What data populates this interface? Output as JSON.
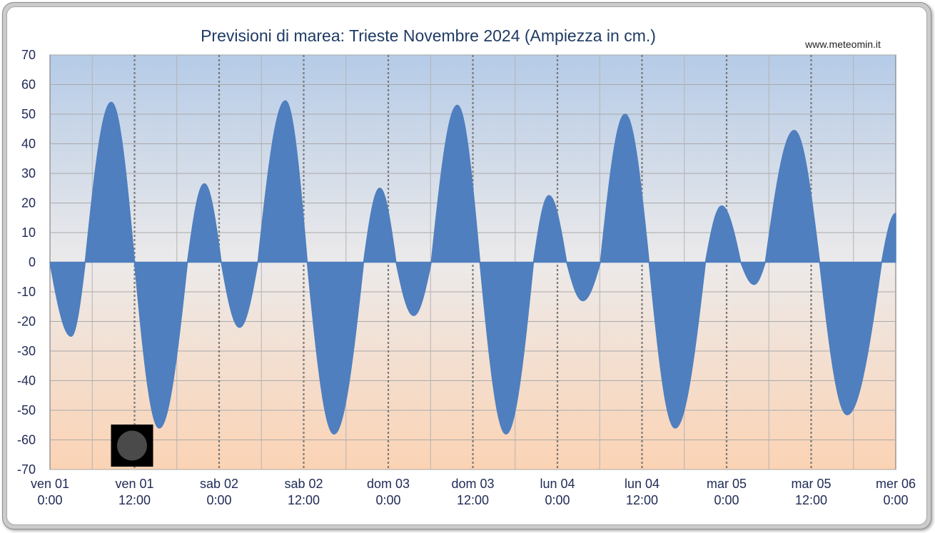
{
  "chart_data": {
    "type": "area",
    "title": "Previsioni di marea: Trieste Novembre 2024 (Ampiezza in cm.)",
    "source": "www.meteomin.it",
    "xlabel": "",
    "ylabel": "",
    "ylim": [
      -70,
      70
    ],
    "yticks": [
      70,
      60,
      50,
      40,
      30,
      20,
      10,
      0,
      -10,
      -20,
      -30,
      -40,
      -50,
      -60,
      -70
    ],
    "xlim_hours": [
      0,
      120
    ],
    "xticks": [
      {
        "hour": 0,
        "day": "ven 01",
        "time": "0:00"
      },
      {
        "hour": 12,
        "day": "ven 01",
        "time": "12:00"
      },
      {
        "hour": 24,
        "day": "sab 02",
        "time": "0:00"
      },
      {
        "hour": 36,
        "day": "sab 02",
        "time": "12:00"
      },
      {
        "hour": 48,
        "day": "dom 03",
        "time": "0:00"
      },
      {
        "hour": 60,
        "day": "dom 03",
        "time": "12:00"
      },
      {
        "hour": 72,
        "day": "lun 04",
        "time": "0:00"
      },
      {
        "hour": 84,
        "day": "lun 04",
        "time": "12:00"
      },
      {
        "hour": 96,
        "day": "mar 05",
        "time": "0:00"
      },
      {
        "hour": 108,
        "day": "mar 05",
        "time": "12:00"
      },
      {
        "hour": 120,
        "day": "mer 06",
        "time": "0:00"
      }
    ],
    "series": [
      {
        "points": [
          [
            0.0,
            0
          ],
          [
            3.0,
            -25
          ],
          [
            5.0,
            0
          ],
          [
            8.7,
            54
          ],
          [
            12.0,
            0
          ],
          [
            15.5,
            -56
          ],
          [
            19.5,
            0
          ],
          [
            21.9,
            26.5
          ],
          [
            24.3,
            0
          ],
          [
            26.9,
            -22
          ],
          [
            29.5,
            0
          ],
          [
            33.4,
            54.5
          ],
          [
            36.5,
            0
          ],
          [
            40.3,
            -58
          ],
          [
            44.5,
            0
          ],
          [
            46.8,
            25
          ],
          [
            49.1,
            0
          ],
          [
            51.6,
            -18
          ],
          [
            54.1,
            0
          ],
          [
            57.8,
            53
          ],
          [
            61.0,
            0
          ],
          [
            64.7,
            -58
          ],
          [
            68.6,
            0
          ],
          [
            70.8,
            22.5
          ],
          [
            73.3,
            0
          ],
          [
            75.6,
            -13
          ],
          [
            78.1,
            0
          ],
          [
            81.6,
            50
          ],
          [
            85.0,
            0
          ],
          [
            88.7,
            -56
          ],
          [
            93.0,
            0
          ],
          [
            95.3,
            19
          ],
          [
            98.0,
            0
          ],
          [
            99.9,
            -7.5
          ],
          [
            101.5,
            0
          ],
          [
            105.6,
            44.5
          ],
          [
            109.2,
            0
          ],
          [
            113.1,
            -51.5
          ],
          [
            118.0,
            0
          ],
          [
            120.0,
            16.5
          ]
        ]
      }
    ],
    "colors": {
      "fill": "#4f7fbe",
      "bg_top": "#b5cbe7",
      "bg_mid": "#eceaea",
      "bg_bottom": "#fbd3b4",
      "text": "#1f2a55",
      "title": "#1f3b64"
    },
    "moon_phase_icon": {
      "name": "new-moon-icon",
      "hour": 12
    }
  }
}
